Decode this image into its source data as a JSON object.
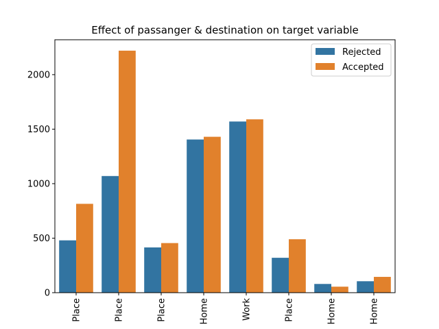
{
  "chart_data": {
    "type": "bar",
    "title": "Effect of passanger & destination on target variable",
    "xlabel": "",
    "ylabel": "",
    "categories": [
      "Place",
      "Place",
      "Place",
      "Home",
      "Work",
      "Place",
      "Home",
      "Home"
    ],
    "series": [
      {
        "name": "Rejected",
        "color": "#3274a1",
        "values": [
          480,
          1070,
          415,
          1405,
          1570,
          320,
          80,
          105
        ]
      },
      {
        "name": "Accepted",
        "color": "#e1812c",
        "values": [
          815,
          2220,
          455,
          1430,
          1590,
          490,
          55,
          145
        ]
      }
    ],
    "ylim": [
      0,
      2320
    ],
    "yticks": [
      0,
      500,
      1000,
      1500,
      2000
    ],
    "legend_position": "top-right",
    "grid": false
  }
}
